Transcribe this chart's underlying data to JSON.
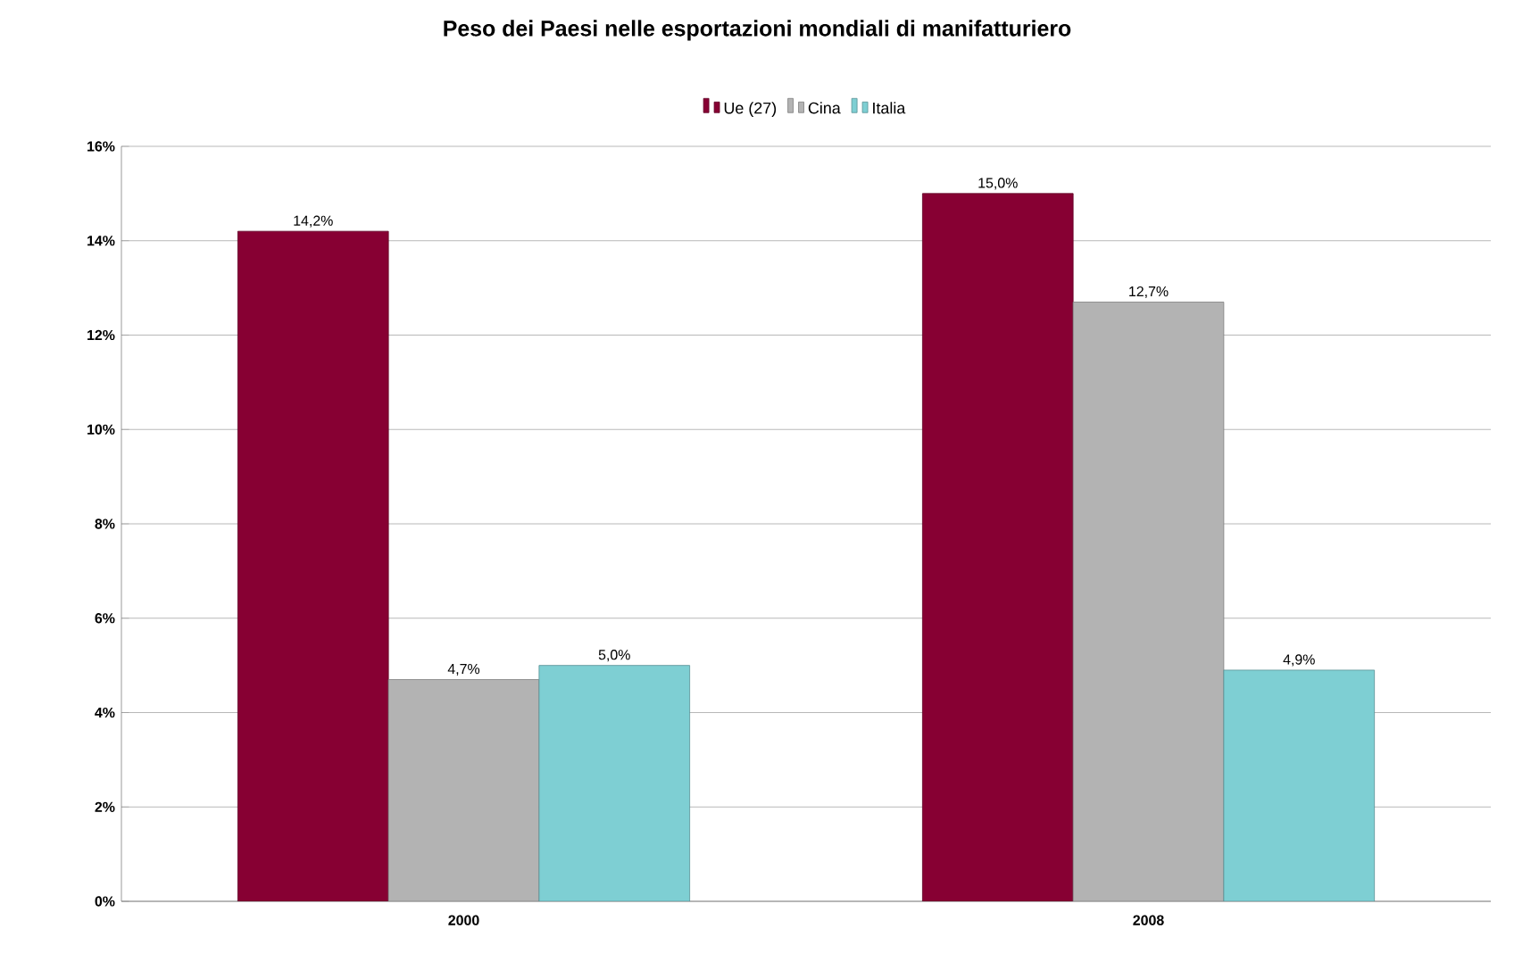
{
  "chart_data": {
    "type": "bar",
    "title": "Peso dei Paesi nelle esportazioni mondiali di manifatturiero",
    "categories": [
      "2000",
      "2008"
    ],
    "series": [
      {
        "name": "Ue (27)",
        "color": "#870033",
        "values": [
          14.2,
          15.0
        ],
        "value_labels": [
          "14,2%",
          "15,0%"
        ]
      },
      {
        "name": "Cina",
        "color": "#b3b3b3",
        "values": [
          4.7,
          12.7
        ],
        "value_labels": [
          "4,7%",
          "12,7%"
        ]
      },
      {
        "name": "Italia",
        "color": "#7ecfd3",
        "values": [
          5.0,
          4.9
        ],
        "value_labels": [
          "5,0%",
          "4,9%"
        ]
      }
    ],
    "ylim": [
      0,
      16
    ],
    "yticks": [
      {
        "value": 0,
        "label": "0%"
      },
      {
        "value": 2,
        "label": "2%"
      },
      {
        "value": 4,
        "label": "4%"
      },
      {
        "value": 6,
        "label": "6%"
      },
      {
        "value": 8,
        "label": "8%"
      },
      {
        "value": 10,
        "label": "10%"
      },
      {
        "value": 12,
        "label": "12%"
      },
      {
        "value": 14,
        "label": "14%"
      },
      {
        "value": 16,
        "label": "16%"
      }
    ],
    "grid": "y",
    "legend": "top"
  }
}
